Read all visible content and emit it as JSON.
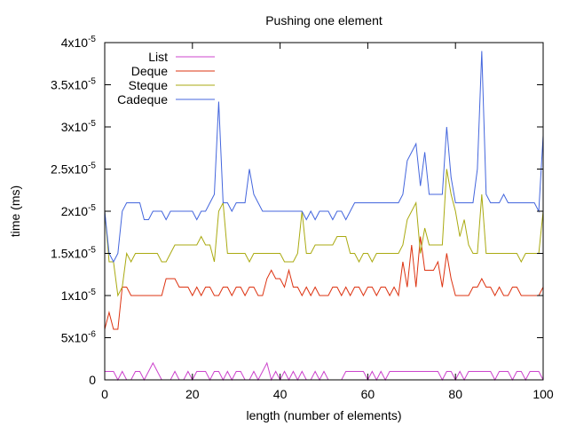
{
  "chart_data": {
    "type": "line",
    "title": "Pushing one element",
    "xlabel": "length (number of elements)",
    "ylabel": "time (ms)",
    "xlim": [
      0,
      100
    ],
    "ylim": [
      0,
      4e-05
    ],
    "x_ticks": [
      {
        "value": 0,
        "label": "0"
      },
      {
        "value": 20,
        "label": "20"
      },
      {
        "value": 40,
        "label": "40"
      },
      {
        "value": 60,
        "label": "60"
      },
      {
        "value": 80,
        "label": "80"
      },
      {
        "value": 100,
        "label": "100"
      }
    ],
    "y_ticks": [
      {
        "value": 0,
        "base": "0",
        "exp": ""
      },
      {
        "value": 5e-06,
        "base": "5x10",
        "exp": "-6"
      },
      {
        "value": 1e-05,
        "base": "1x10",
        "exp": "-5"
      },
      {
        "value": 1.5e-05,
        "base": "1.5x10",
        "exp": "-5"
      },
      {
        "value": 2e-05,
        "base": "2x10",
        "exp": "-5"
      },
      {
        "value": 2.5e-05,
        "base": "2.5x10",
        "exp": "-5"
      },
      {
        "value": 3e-05,
        "base": "3x10",
        "exp": "-5"
      },
      {
        "value": 3.5e-05,
        "base": "3.5x10",
        "exp": "-5"
      },
      {
        "value": 4e-05,
        "base": "4x10",
        "exp": "-5"
      }
    ],
    "grid": false,
    "legend_position": "top-left",
    "series": [
      {
        "name": "List",
        "color": "#cc44cc",
        "values_e6": [
          1,
          1,
          1,
          0,
          1,
          0,
          0,
          1,
          1,
          0,
          1,
          2,
          1,
          0,
          0,
          0,
          1,
          0,
          0,
          1,
          0,
          1,
          1,
          1,
          0,
          1,
          1,
          0,
          1,
          0,
          1,
          1,
          0,
          0,
          1,
          0,
          1,
          2,
          0,
          1,
          0,
          1,
          0,
          1,
          0,
          1,
          0,
          0,
          1,
          0,
          1,
          0,
          0,
          0,
          0,
          1,
          1,
          1,
          1,
          1,
          0,
          1,
          0,
          1,
          0,
          1,
          1,
          1,
          1,
          1,
          1,
          1,
          1,
          1,
          1,
          1,
          1,
          0,
          1,
          1,
          0,
          1,
          0,
          1,
          1,
          1,
          1,
          1,
          1,
          0,
          1,
          1,
          1,
          0,
          1,
          1,
          0,
          1,
          1,
          1,
          0
        ]
      },
      {
        "name": "Deque",
        "color": "#dd3311",
        "values_e6": [
          6,
          8,
          6,
          6,
          11,
          11,
          10,
          10,
          10,
          10,
          10,
          10,
          10,
          10,
          12,
          12,
          12,
          11,
          11,
          11,
          10,
          11,
          10,
          11,
          11,
          10,
          10,
          11,
          11,
          10,
          11,
          11,
          10,
          11,
          11,
          10,
          10,
          12,
          13,
          12,
          12,
          11,
          13,
          11,
          11,
          10,
          11,
          10,
          11,
          10,
          10,
          10,
          11,
          11,
          10,
          11,
          10,
          11,
          11,
          10,
          11,
          11,
          10,
          11,
          11,
          10,
          11,
          10,
          14,
          11,
          16,
          11,
          17,
          13,
          13,
          13,
          14,
          11,
          15,
          12,
          10,
          10,
          10,
          10,
          11,
          11,
          12,
          11,
          11,
          10,
          11,
          10,
          10,
          11,
          11,
          10,
          10,
          10,
          10,
          10,
          11
        ]
      },
      {
        "name": "Steque",
        "color": "#aaaa11",
        "values_e6": [
          20,
          14,
          14,
          10,
          11,
          15,
          14,
          15,
          15,
          15,
          15,
          15,
          15,
          14,
          14,
          15,
          16,
          16,
          16,
          16,
          16,
          16,
          17,
          16,
          16,
          14,
          20,
          21,
          15,
          15,
          15,
          15,
          15,
          14,
          15,
          15,
          15,
          15,
          15,
          15,
          15,
          14,
          14,
          14,
          15,
          20,
          15,
          15,
          16,
          16,
          16,
          16,
          16,
          17,
          17,
          17,
          15,
          15,
          14,
          15,
          15,
          14,
          15,
          15,
          15,
          15,
          15,
          15,
          16,
          19,
          20,
          21,
          15,
          18,
          16,
          16,
          16,
          16,
          25,
          22,
          20,
          17,
          19,
          16,
          15,
          15,
          22,
          15,
          15,
          15,
          15,
          15,
          15,
          15,
          15,
          14,
          15,
          15,
          15,
          15,
          20
        ]
      },
      {
        "name": "Cadeque",
        "color": "#4466dd",
        "values_e6": [
          20,
          15,
          14,
          15,
          20,
          21,
          21,
          21,
          21,
          19,
          19,
          20,
          20,
          20,
          19,
          20,
          20,
          20,
          20,
          20,
          20,
          19,
          20,
          20,
          21,
          22,
          33,
          21,
          21,
          20,
          21,
          21,
          21,
          25,
          22,
          21,
          20,
          20,
          20,
          20,
          20,
          20,
          20,
          20,
          20,
          20,
          19,
          20,
          19,
          20,
          20,
          20,
          19,
          20,
          20,
          19,
          20,
          21,
          21,
          21,
          21,
          21,
          21,
          21,
          21,
          21,
          21,
          21,
          22,
          26,
          27,
          28,
          23,
          27,
          22,
          22,
          22,
          22,
          30,
          24,
          21,
          21,
          21,
          21,
          21,
          25,
          39,
          22,
          21,
          21,
          21,
          22,
          21,
          21,
          21,
          21,
          21,
          21,
          21,
          20,
          29
        ]
      }
    ]
  }
}
